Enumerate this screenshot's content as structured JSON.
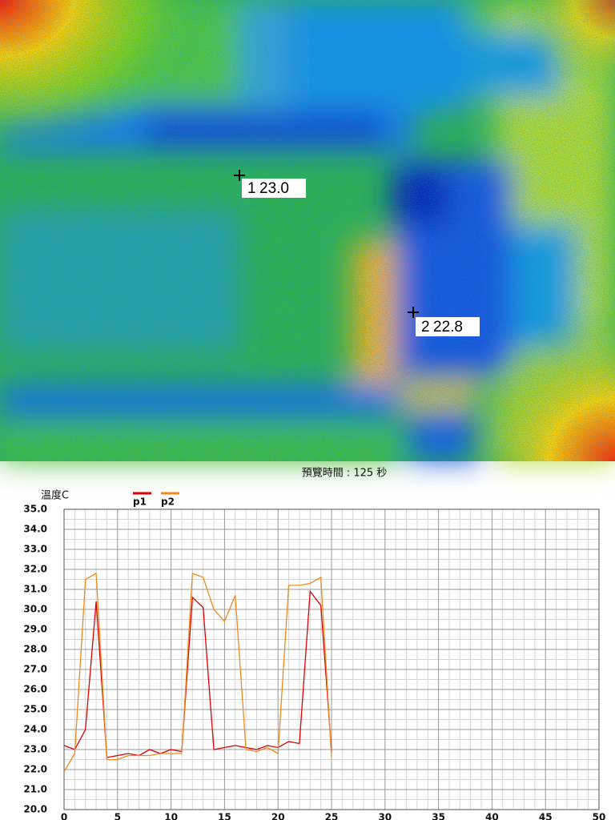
{
  "thermal_image": {
    "markers": [
      {
        "id": "1",
        "temperature": "23.0"
      },
      {
        "id": "2",
        "temperature": "22.8"
      }
    ]
  },
  "chart_data": {
    "type": "line",
    "title": "預覽時間 : 125 秒",
    "y_label": "溫度C",
    "x": [
      0,
      1,
      2,
      3,
      4,
      5,
      6,
      7,
      8,
      9,
      10,
      11,
      12,
      13,
      14,
      15,
      16,
      17,
      18,
      19,
      20,
      21,
      22,
      23,
      24,
      25
    ],
    "series": [
      {
        "name": "p1",
        "color": "#dd0000",
        "values": [
          23.2,
          23.0,
          24.0,
          30.4,
          22.6,
          22.7,
          22.8,
          22.7,
          23.0,
          22.8,
          23.0,
          22.9,
          30.6,
          30.1,
          23.0,
          23.1,
          23.2,
          23.1,
          23.0,
          23.2,
          23.1,
          23.4,
          23.3,
          30.9,
          30.2,
          22.9
        ]
      },
      {
        "name": "p2",
        "color": "#f08a1c",
        "values": [
          21.9,
          22.8,
          31.5,
          31.8,
          22.5,
          22.5,
          22.7,
          22.7,
          22.7,
          22.8,
          22.8,
          22.8,
          31.8,
          31.6,
          30.0,
          29.4,
          30.7,
          23.0,
          22.9,
          23.1,
          22.8,
          31.2,
          31.2,
          31.3,
          31.6,
          22.6
        ]
      }
    ],
    "xlim": [
      0,
      50
    ],
    "xticks": [
      0,
      5,
      10,
      15,
      20,
      25,
      30,
      35,
      40,
      45,
      50
    ],
    "ylim": [
      20,
      35
    ],
    "yticks": [
      {
        "value": 20,
        "label": "20.0"
      },
      {
        "value": 21,
        "label": "21.0"
      },
      {
        "value": 22,
        "label": "22.0"
      },
      {
        "value": 23,
        "label": "23.0"
      },
      {
        "value": 24,
        "label": "24.0"
      },
      {
        "value": 25,
        "label": "25.0"
      },
      {
        "value": 26,
        "label": "26.0"
      },
      {
        "value": 27,
        "label": "27.0"
      },
      {
        "value": 28,
        "label": "28.0"
      },
      {
        "value": 29,
        "label": "29.0"
      },
      {
        "value": 30,
        "label": "30.0"
      },
      {
        "value": 31,
        "label": "31.0"
      },
      {
        "value": 32,
        "label": "32.0"
      },
      {
        "value": 33,
        "label": "33.0"
      },
      {
        "value": 34,
        "label": "34.0"
      },
      {
        "value": 35,
        "label": "35.0"
      }
    ],
    "grid": true
  }
}
